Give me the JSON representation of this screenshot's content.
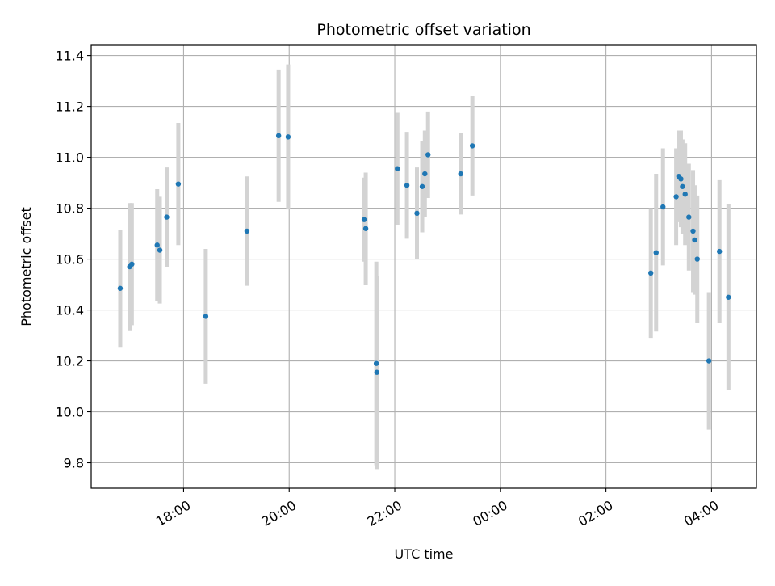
{
  "chart_data": {
    "type": "scatter",
    "title": "Photometric offset variation",
    "xlabel": "UTC time",
    "ylabel": "Photometric offset",
    "x_unit": "hours UTC (values >= 24 are after midnight of the next day)",
    "xlim": [
      16.25,
      28.85
    ],
    "ylim": [
      9.7,
      11.44
    ],
    "x_ticks": [
      {
        "value": 18,
        "label": "18:00"
      },
      {
        "value": 20,
        "label": "20:00"
      },
      {
        "value": 22,
        "label": "22:00"
      },
      {
        "value": 24,
        "label": "00:00"
      },
      {
        "value": 26,
        "label": "02:00"
      },
      {
        "value": 28,
        "label": "04:00"
      }
    ],
    "y_ticks": [
      {
        "value": 9.8,
        "label": "9.8"
      },
      {
        "value": 10.0,
        "label": "10.0"
      },
      {
        "value": 10.2,
        "label": "10.2"
      },
      {
        "value": 10.4,
        "label": "10.4"
      },
      {
        "value": 10.6,
        "label": "10.6"
      },
      {
        "value": 10.8,
        "label": "10.8"
      },
      {
        "value": 11.0,
        "label": "11.0"
      },
      {
        "value": 11.2,
        "label": "11.2"
      },
      {
        "value": 11.4,
        "label": "11.4"
      }
    ],
    "grid": true,
    "marker_color": "#1f77b4",
    "errorbar_color": "#d3d3d3",
    "points": [
      {
        "x": 16.8,
        "y": 10.485,
        "err": 0.23
      },
      {
        "x": 16.98,
        "y": 10.57,
        "err": 0.25
      },
      {
        "x": 17.02,
        "y": 10.58,
        "err": 0.24
      },
      {
        "x": 17.5,
        "y": 10.655,
        "err": 0.22
      },
      {
        "x": 17.55,
        "y": 10.635,
        "err": 0.21
      },
      {
        "x": 17.68,
        "y": 10.765,
        "err": 0.195
      },
      {
        "x": 17.9,
        "y": 10.895,
        "err": 0.24
      },
      {
        "x": 18.42,
        "y": 10.375,
        "err": 0.265
      },
      {
        "x": 19.2,
        "y": 10.71,
        "err": 0.215
      },
      {
        "x": 19.8,
        "y": 11.085,
        "err": 0.26
      },
      {
        "x": 19.98,
        "y": 11.08,
        "err": 0.285
      },
      {
        "x": 21.42,
        "y": 10.755,
        "err": 0.165
      },
      {
        "x": 21.45,
        "y": 10.72,
        "err": 0.22
      },
      {
        "x": 21.65,
        "y": 10.19,
        "err": 0.4
      },
      {
        "x": 21.66,
        "y": 10.155,
        "err": 0.38
      },
      {
        "x": 22.05,
        "y": 10.955,
        "err": 0.22
      },
      {
        "x": 22.23,
        "y": 10.89,
        "err": 0.21
      },
      {
        "x": 22.42,
        "y": 10.78,
        "err": 0.18
      },
      {
        "x": 22.52,
        "y": 10.885,
        "err": 0.18
      },
      {
        "x": 22.57,
        "y": 10.935,
        "err": 0.17
      },
      {
        "x": 22.63,
        "y": 11.01,
        "err": 0.17
      },
      {
        "x": 23.25,
        "y": 10.935,
        "err": 0.16
      },
      {
        "x": 23.47,
        "y": 11.045,
        "err": 0.195
      },
      {
        "x": 26.85,
        "y": 10.545,
        "err": 0.255
      },
      {
        "x": 26.95,
        "y": 10.625,
        "err": 0.31
      },
      {
        "x": 27.08,
        "y": 10.805,
        "err": 0.23
      },
      {
        "x": 27.33,
        "y": 10.845,
        "err": 0.19
      },
      {
        "x": 27.38,
        "y": 10.925,
        "err": 0.18
      },
      {
        "x": 27.42,
        "y": 10.915,
        "err": 0.19
      },
      {
        "x": 27.45,
        "y": 10.885,
        "err": 0.185
      },
      {
        "x": 27.5,
        "y": 10.855,
        "err": 0.2
      },
      {
        "x": 27.57,
        "y": 10.765,
        "err": 0.21
      },
      {
        "x": 27.65,
        "y": 10.71,
        "err": 0.24
      },
      {
        "x": 27.68,
        "y": 10.675,
        "err": 0.215
      },
      {
        "x": 27.73,
        "y": 10.6,
        "err": 0.25
      },
      {
        "x": 27.95,
        "y": 10.2,
        "err": 0.27
      },
      {
        "x": 28.15,
        "y": 10.63,
        "err": 0.28
      },
      {
        "x": 28.32,
        "y": 10.45,
        "err": 0.365
      }
    ]
  }
}
